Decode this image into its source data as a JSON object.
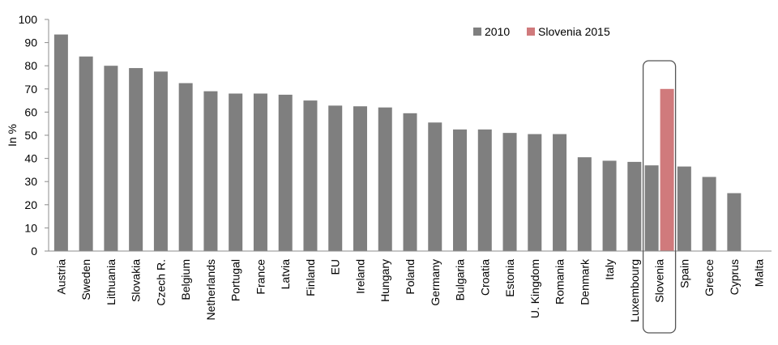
{
  "chart_data": {
    "type": "bar",
    "ylabel": "In %",
    "ylim": [
      0,
      100
    ],
    "y_ticks": [
      "0",
      "10",
      "20",
      "30",
      "40",
      "50",
      "60",
      "70",
      "80",
      "90",
      "100"
    ],
    "grid": false,
    "legend_position": "top-right",
    "categories": [
      "Austria",
      "Sweden",
      "Lithuania",
      "Slovakia",
      "Czech R.",
      "Belgium",
      "Netherlands",
      "Portugal",
      "France",
      "Latvia",
      "Finland",
      "EU",
      "Ireland",
      "Hungary",
      "Poland",
      "Germany",
      "Bulgaria",
      "Croatia",
      "Estonia",
      "U. Kingdom",
      "Romania",
      "Denmark",
      "Italy",
      "Luxembourg",
      "Slovenia",
      "Spain",
      "Greece",
      "Cyprus",
      "Malta"
    ],
    "series": [
      {
        "name": "2010",
        "color": "#7f7f7f",
        "values": [
          93.5,
          84,
          80,
          79,
          77.5,
          72.5,
          69,
          68,
          68,
          67.5,
          65,
          62.8,
          62.5,
          62,
          59.5,
          55.5,
          52.5,
          52.5,
          51,
          50.5,
          50.5,
          40.5,
          39,
          38.5,
          37,
          36.5,
          32,
          25,
          null
        ]
      },
      {
        "name": "Slovenia 2015",
        "color": "#d07a7c",
        "values": [
          null,
          null,
          null,
          null,
          null,
          null,
          null,
          null,
          null,
          null,
          null,
          null,
          null,
          null,
          null,
          null,
          null,
          null,
          null,
          null,
          null,
          null,
          null,
          null,
          70,
          null,
          null,
          null,
          null
        ]
      }
    ],
    "highlight_category": "Slovenia"
  }
}
